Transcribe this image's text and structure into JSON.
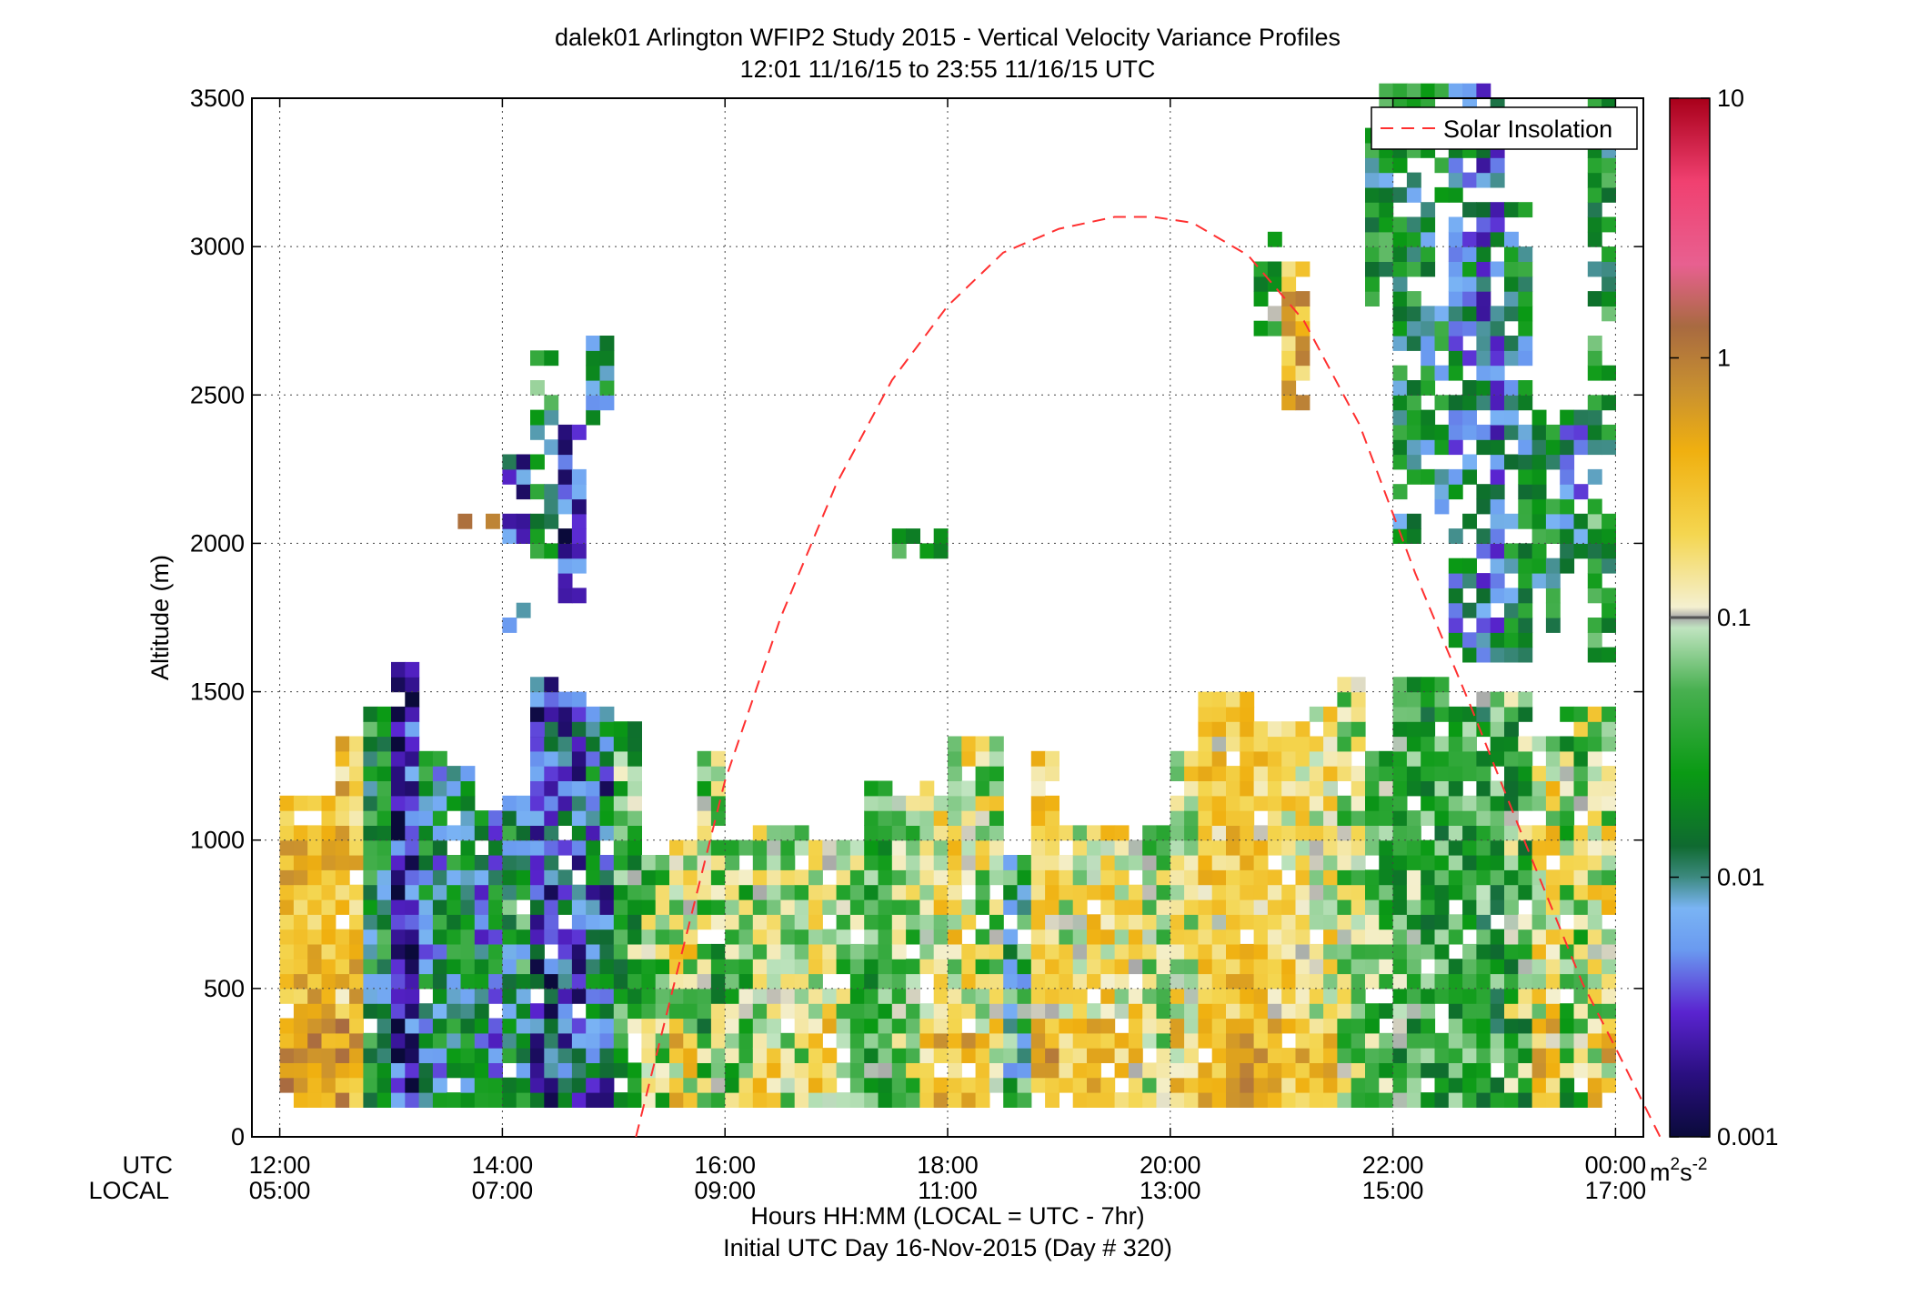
{
  "chart_data": {
    "type": "heatmap",
    "title": "dalek01 Arlington WFIP2 Study 2015 - Vertical Velocity Variance Profiles",
    "subtitle": "12:01 11/16/15 to 23:55 11/16/15  UTC",
    "ylabel": "Altitude (m)",
    "xlabel_line1": "Hours HH:MM  (LOCAL = UTC - 7hr)",
    "xlabel_line2": "Initial UTC Day 16-Nov-2015 (Day # 320)",
    "x_row_labels": [
      "UTC",
      "LOCAL"
    ],
    "xlim_hours_utc": [
      11.75,
      24.25
    ],
    "ylim": [
      0,
      3500
    ],
    "grid": true,
    "x_ticks": [
      {
        "hour": 12,
        "utc": "12:00",
        "local": "05:00"
      },
      {
        "hour": 14,
        "utc": "14:00",
        "local": "07:00"
      },
      {
        "hour": 16,
        "utc": "16:00",
        "local": "09:00"
      },
      {
        "hour": 18,
        "utc": "18:00",
        "local": "11:00"
      },
      {
        "hour": 20,
        "utc": "20:00",
        "local": "13:00"
      },
      {
        "hour": 22,
        "utc": "22:00",
        "local": "15:00"
      },
      {
        "hour": 24,
        "utc": "00:00",
        "local": "17:00"
      }
    ],
    "y_ticks": [
      0,
      500,
      1000,
      1500,
      2000,
      2500,
      3000,
      3500
    ],
    "colorbar": {
      "scale": "log",
      "range": [
        0.001,
        10
      ],
      "ticks": [
        {
          "value": 10,
          "label": "10"
        },
        {
          "value": 1,
          "label": "1"
        },
        {
          "value": 0.1,
          "label": "0.1"
        },
        {
          "value": 0.01,
          "label": "0.01"
        },
        {
          "value": 0.001,
          "label": "0.001"
        }
      ],
      "unit_base": "m",
      "unit_sup1": "2",
      "unit_mid": "s",
      "unit_sup2": "-2",
      "threshold_line": 0.1
    },
    "legend": {
      "position": "top-right",
      "label": "Solar Insolation",
      "style": "dashed",
      "color": "#ff3030"
    },
    "solar_curve": {
      "hours_utc": [
        15.2,
        15.6,
        16.0,
        16.5,
        17.0,
        17.5,
        18.0,
        18.5,
        19.0,
        19.5,
        19.85,
        20.2,
        20.7,
        21.2,
        21.7,
        22.2,
        22.7,
        23.2,
        23.7,
        24.0,
        24.4
      ],
      "altitude": [
        0,
        600,
        1200,
        1750,
        2200,
        2550,
        2800,
        2980,
        3060,
        3100,
        3100,
        3080,
        2970,
        2750,
        2400,
        1900,
        1450,
        980,
        520,
        300,
        0
      ]
    },
    "cells": {
      "comment": "Approximate reading of binned variance values (m^2 s^-2) at ~15-min x 50-m resolution",
      "x_step_hours": 0.25,
      "y_step_m": 50
    }
  }
}
